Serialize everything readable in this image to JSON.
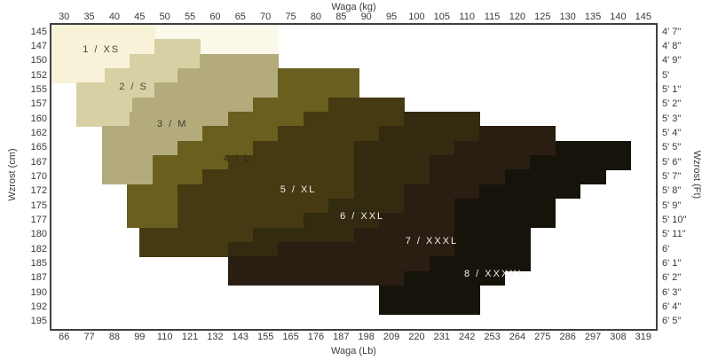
{
  "axes": {
    "title_top": "Waga  (kg)",
    "title_bottom": "Waga  (Lb)",
    "title_left": "Wzrost  (cm)",
    "title_right": "Wzrost  (Ft)",
    "kg_ticks": [
      30,
      35,
      40,
      45,
      50,
      55,
      60,
      65,
      70,
      75,
      80,
      85,
      90,
      95,
      100,
      105,
      110,
      115,
      120,
      125,
      130,
      135,
      140,
      145
    ],
    "lb_ticks": [
      66,
      77,
      88,
      99,
      110,
      121,
      132,
      143,
      155,
      165,
      176,
      187,
      198,
      209,
      220,
      231,
      242,
      253,
      264,
      275,
      286,
      297,
      308,
      319
    ],
    "cm_ticks": [
      145,
      147,
      150,
      152,
      155,
      157,
      160,
      162,
      165,
      167,
      170,
      172,
      175,
      177,
      180,
      182,
      185,
      187,
      190,
      192,
      195
    ],
    "ft_ticks": [
      "4'  7\"",
      "4'  8\"",
      "4'  9\"",
      "5'",
      "5'  1\"",
      "5'  2\"",
      "5'  3\"",
      "5'  4\"",
      "5'  5\"",
      "5'  6\"",
      "5'  7\"",
      "5'  8\"",
      "5'  9\"",
      "5'  10\"",
      "5'  11\"",
      "6'",
      "6'  1\"",
      "6'  2\"",
      "6'  3\"",
      "6'  4\"",
      "6'  5\""
    ]
  },
  "chart_data": {
    "type": "stepped-size-bands",
    "x_axis": {
      "label": "Waga (kg)",
      "range_kg": [
        27.5,
        147.5
      ]
    },
    "y_axis": {
      "label": "Wzrost (cm)",
      "rows_cm": [
        145,
        147,
        150,
        152,
        155,
        157,
        160,
        162,
        165,
        167,
        170,
        172,
        175,
        177,
        180,
        182,
        185,
        187,
        190,
        192,
        195
      ]
    },
    "bands": [
      {
        "id": "fringe",
        "label": "",
        "color": "#fbf9ea",
        "text_color": "",
        "label_kg": 0,
        "label_row": -1,
        "rows": [
          [
            0,
            48,
            72.5
          ],
          [
            1,
            57,
            72.5
          ]
        ]
      },
      {
        "id": "1",
        "label": "1 / XS",
        "color": "#f7f2d8",
        "text_color": "#45443c",
        "label_kg": 37.4,
        "label_row": 1.71,
        "rows": [
          [
            0,
            27.5,
            48
          ],
          [
            1,
            27.5,
            48
          ],
          [
            2,
            27.5,
            43
          ],
          [
            3,
            27.5,
            38
          ]
        ]
      },
      {
        "id": "2",
        "label": "2 / S",
        "color": "#d7d0a5",
        "text_color": "#45443c",
        "label_kg": 43.8,
        "label_row": 4.26,
        "rows": [
          [
            1,
            48,
            57
          ],
          [
            2,
            43,
            57
          ],
          [
            3,
            38,
            52.5
          ],
          [
            4,
            32.5,
            48
          ],
          [
            5,
            32.5,
            43.5
          ],
          [
            6,
            32.5,
            43
          ]
        ]
      },
      {
        "id": "3",
        "label": "3 / M",
        "color": "#b4ab7d",
        "text_color": "#3f3e30",
        "label_kg": 51.5,
        "label_row": 6.83,
        "rows": [
          [
            2,
            57,
            72.5
          ],
          [
            3,
            52.5,
            72.5
          ],
          [
            4,
            48,
            72.5
          ],
          [
            5,
            43.5,
            67.5
          ],
          [
            6,
            43,
            62.5
          ],
          [
            7,
            37.5,
            57.5
          ],
          [
            8,
            37.5,
            52.5
          ],
          [
            9,
            37.5,
            47.5
          ],
          [
            10,
            37.5,
            47.5
          ]
        ]
      },
      {
        "id": "4",
        "label": "4 / L",
        "color": "#6a5f1e",
        "text_color": "#2e2a16",
        "label_kg": 64.4,
        "label_row": 9.22,
        "rows": [
          [
            3,
            72.5,
            88.5
          ],
          [
            4,
            72.5,
            88.5
          ],
          [
            5,
            67.5,
            82.5
          ],
          [
            6,
            62.5,
            77.5
          ],
          [
            7,
            57.5,
            72.5
          ],
          [
            8,
            52.5,
            67.5
          ],
          [
            9,
            47.5,
            62.5
          ],
          [
            10,
            47.5,
            57.5
          ],
          [
            11,
            42.5,
            52.5
          ],
          [
            12,
            42.5,
            52.5
          ],
          [
            13,
            42.5,
            52.5
          ]
        ]
      },
      {
        "id": "5",
        "label": "5 / XL",
        "color": "#453a11",
        "text_color": "#f2f0ea",
        "label_kg": 76.5,
        "label_row": 11.36,
        "rows": [
          [
            5,
            82.5,
            97.5
          ],
          [
            6,
            77.5,
            97.5
          ],
          [
            7,
            72.5,
            92.5
          ],
          [
            8,
            67.5,
            87.5
          ],
          [
            9,
            62.5,
            87.5
          ],
          [
            10,
            57.5,
            87.5
          ],
          [
            11,
            52.5,
            87.5
          ],
          [
            12,
            52.5,
            82.5
          ],
          [
            13,
            52.5,
            77.5
          ],
          [
            14,
            45,
            67.5
          ],
          [
            15,
            45,
            62.5
          ]
        ]
      },
      {
        "id": "6",
        "label": "6 / XXL",
        "color": "#322b10",
        "text_color": "#f2f0ea",
        "label_kg": 89.2,
        "label_row": 13.23,
        "rows": [
          [
            6,
            97.5,
            112.5
          ],
          [
            7,
            92.5,
            112.5
          ],
          [
            8,
            87.5,
            107.5
          ],
          [
            9,
            87.5,
            102.5
          ],
          [
            10,
            87.5,
            102.5
          ],
          [
            11,
            87.5,
            97.5
          ],
          [
            12,
            82.5,
            97.5
          ],
          [
            13,
            77.5,
            92.5
          ],
          [
            14,
            67.5,
            87.5
          ],
          [
            15,
            62.5,
            72.5
          ]
        ]
      },
      {
        "id": "7",
        "label": "7 / XXXL",
        "color": "#2a1d12",
        "text_color": "#f2f0ea",
        "label_kg": 103.0,
        "label_row": 14.91,
        "rows": [
          [
            7,
            112.5,
            127.5
          ],
          [
            8,
            107.5,
            127.5
          ],
          [
            9,
            102.5,
            122.5
          ],
          [
            10,
            102.5,
            117.5
          ],
          [
            11,
            97.5,
            112.5
          ],
          [
            12,
            97.5,
            107.5
          ],
          [
            13,
            92.5,
            107.5
          ],
          [
            14,
            87.5,
            107.5
          ],
          [
            15,
            72.5,
            107.5
          ],
          [
            16,
            62.5,
            102.5
          ],
          [
            17,
            62.5,
            97.5
          ]
        ]
      },
      {
        "id": "8",
        "label": "8 / XXXXL",
        "color": "#16130a",
        "text_color": "#f2f0ea",
        "label_kg": 115.5,
        "label_row": 17.21,
        "rows": [
          [
            8,
            127.5,
            142.5
          ],
          [
            9,
            122.5,
            142.5
          ],
          [
            10,
            117.5,
            137.5
          ],
          [
            11,
            112.5,
            132.5
          ],
          [
            12,
            107.5,
            127.5
          ],
          [
            13,
            107.5,
            127.5
          ],
          [
            14,
            107.5,
            122.5
          ],
          [
            15,
            107.5,
            122.5
          ],
          [
            16,
            102.5,
            122.5
          ],
          [
            17,
            97.5,
            117.5
          ],
          [
            18,
            92.5,
            112.5
          ],
          [
            19,
            92.5,
            112.5
          ]
        ]
      }
    ]
  }
}
